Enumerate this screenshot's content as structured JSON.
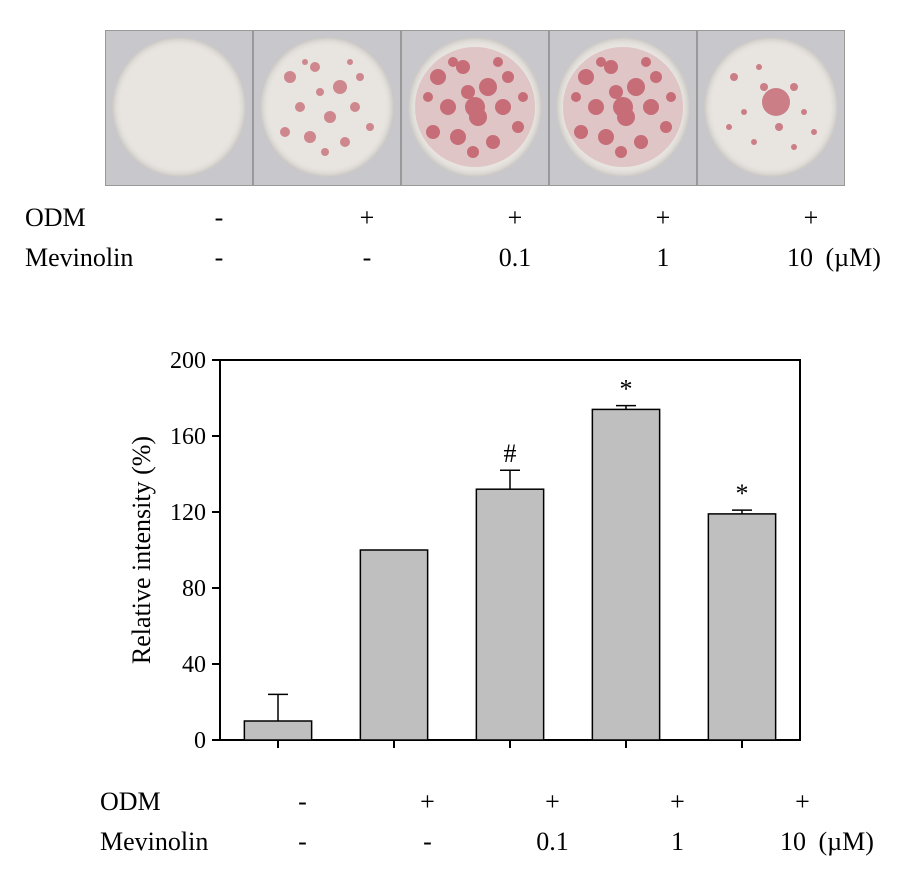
{
  "top_panel": {
    "row_label_1": "ODM",
    "row_label_2": "Mevinolin",
    "odm_values": [
      "-",
      "+",
      "+",
      "+",
      "+"
    ],
    "mev_values": [
      "-",
      "-",
      "0.1",
      "1",
      "10"
    ],
    "unit": "(µM)",
    "well_bg": "#c8c8cc",
    "well_inner_bg": "#e8e4e0",
    "stain_color": "#b83b4a",
    "stain_intensity": [
      0.03,
      0.35,
      0.7,
      0.7,
      0.3
    ]
  },
  "chart": {
    "type": "bar",
    "ylabel": "Relative intensity (%)",
    "ylim": [
      0,
      200
    ],
    "ytick_step": 40,
    "yticks": [
      0,
      40,
      80,
      120,
      160,
      200
    ],
    "bar_fill": "#bfbfbf",
    "bar_stroke": "#000000",
    "axis_stroke": "#000000",
    "background_color": "#ffffff",
    "title_fontsize": 26,
    "tick_fontsize": 24,
    "sig_fontsize": 26,
    "bars": [
      {
        "value": 10,
        "error": 14,
        "sig": ""
      },
      {
        "value": 100,
        "error": 0,
        "sig": ""
      },
      {
        "value": 132,
        "error": 10,
        "sig": "#"
      },
      {
        "value": 174,
        "error": 2,
        "sig": "*"
      },
      {
        "value": 119,
        "error": 2,
        "sig": "*"
      }
    ],
    "row_label_1": "ODM",
    "row_label_2": "Mevinolin",
    "odm_values": [
      "-",
      "+",
      "+",
      "+",
      "+"
    ],
    "mev_values": [
      "-",
      "-",
      "0.1",
      "1",
      "10"
    ],
    "unit": "(µM)"
  }
}
